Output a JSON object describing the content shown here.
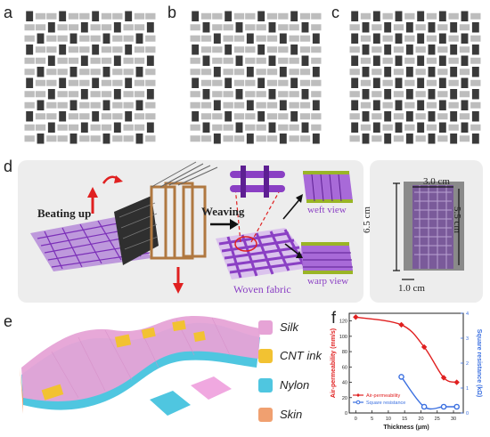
{
  "panels": {
    "a": "a",
    "b": "b",
    "c": "c",
    "d": "d",
    "e": "e",
    "f": "f"
  },
  "weave_patterns": [
    {
      "name": "pattern-a",
      "period": 3,
      "offsets": [
        0,
        1,
        2
      ]
    },
    {
      "name": "pattern-b",
      "period": 3,
      "offsets": [
        0,
        2,
        1
      ]
    },
    {
      "name": "pattern-c",
      "period": 2,
      "offsets": [
        0,
        1
      ]
    }
  ],
  "colors": {
    "warp": "#3a3a3a",
    "weft": "#bdbdbd",
    "purple": "#8a3fc4",
    "frame": "#b07840",
    "silk": "#e6a3d6",
    "cnt_ink": "#f2c232",
    "nylon": "#4fc6e0",
    "skin": "#f0a070",
    "air_series": "#e02020",
    "sq_series": "#3a6fe0"
  },
  "panel_d": {
    "beating_up": "Beating up",
    "weaving": "Weaving",
    "woven_fabric": "Woven fabric",
    "weft_view": "weft view",
    "warp_view": "warp view",
    "dim_width": "3.0 cm",
    "dim_height_left": "6.5 cm",
    "dim_height_right": "5.5 cm",
    "dim_bottom": "1.0 cm"
  },
  "panel_e": {
    "legend": [
      {
        "label": "Silk",
        "color": "#e6a3d6"
      },
      {
        "label": "CNT ink",
        "color": "#f2c232"
      },
      {
        "label": "Nylon",
        "color": "#4fc6e0"
      },
      {
        "label": "Skin",
        "color": "#f0a070"
      }
    ]
  },
  "chart_data": {
    "type": "line",
    "xlabel": "Thickness (μm)",
    "ylabel": "Air-permeability (mm/s)",
    "y2label": "Square resistance (kΩ)",
    "xlim": [
      -2,
      33
    ],
    "xticks": [
      0,
      5,
      10,
      15,
      20,
      25,
      30
    ],
    "ylim": [
      0,
      130
    ],
    "yticks": [
      0,
      20,
      40,
      60,
      80,
      100,
      120
    ],
    "y2lim": [
      0,
      4
    ],
    "y2ticks": [
      0,
      1,
      2,
      3,
      4
    ],
    "series": [
      {
        "name": "Air-permeability",
        "axis": "left",
        "color": "#e02020",
        "marker": "diamond",
        "x": [
          0,
          14,
          21,
          27,
          31
        ],
        "y": [
          125,
          115,
          86,
          46,
          40
        ]
      },
      {
        "name": "Square resistance",
        "axis": "right",
        "color": "#3a6fe0",
        "marker": "circle",
        "x": [
          14,
          21,
          27,
          31
        ],
        "y": [
          1.45,
          0.25,
          0.25,
          0.25
        ]
      }
    ],
    "legend_position": "bottom-left"
  }
}
